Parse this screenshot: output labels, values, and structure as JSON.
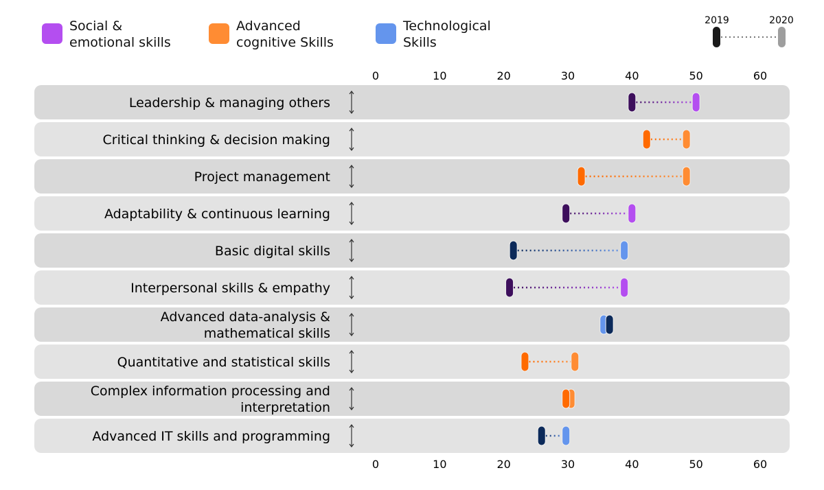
{
  "legend": [
    {
      "label": "Social &\nemotional skills",
      "color": "#b44ef0"
    },
    {
      "label": "Advanced\ncognitive Skills",
      "color": "#ff8c33"
    },
    {
      "label": "Technological\nSkills",
      "color": "#6495ed"
    }
  ],
  "year_legend": {
    "start": "2019",
    "end": "2020",
    "start_color": "#1a1a1a",
    "end_color": "#9e9e9e"
  },
  "colors": {
    "social": {
      "2019": "#3d0f5c",
      "2020": "#b44ef0"
    },
    "cognitive": {
      "2019": "#ff6a00",
      "2020": "#ff8c33"
    },
    "tech": {
      "2019": "#0c2a5a",
      "2020": "#6495ed"
    },
    "row_dark": "#d9d9d9",
    "row_light": "#e3e3e3"
  },
  "chart_data": {
    "type": "dumbbell",
    "xlim": [
      0,
      60
    ],
    "xticks": [
      0,
      10,
      20,
      30,
      40,
      50,
      60
    ],
    "series_years": [
      "2019",
      "2020"
    ],
    "categories": [
      {
        "label": "Leadership & managing others",
        "group": "social",
        "2019": 40,
        "2020": 50
      },
      {
        "label": "Critical thinking & decision making",
        "group": "cognitive",
        "2019": 42.3,
        "2020": 48.5
      },
      {
        "label": "Project management",
        "group": "cognitive",
        "2019": 32.1,
        "2020": 48.5
      },
      {
        "label": "Adaptability & continuous learning",
        "group": "social",
        "2019": 29.7,
        "2020": 40
      },
      {
        "label": "Basic digital skills",
        "group": "tech",
        "2019": 21.5,
        "2020": 38.8
      },
      {
        "label": "Interpersonal skills & empathy",
        "group": "social",
        "2019": 20.9,
        "2020": 38.8
      },
      {
        "label": "Advanced data-analysis &\nmathematical skills",
        "group": "tech",
        "2019": 36.5,
        "2020": 35.6
      },
      {
        "label": "Quantitative and statistical skills",
        "group": "cognitive",
        "2019": 23.3,
        "2020": 31.1
      },
      {
        "label": "Complex information processing and\ninterpretation",
        "group": "cognitive",
        "2019": 29.7,
        "2020": 30.5
      },
      {
        "label": "Advanced IT skills and programming",
        "group": "tech",
        "2019": 25.9,
        "2020": 29.7
      }
    ]
  }
}
